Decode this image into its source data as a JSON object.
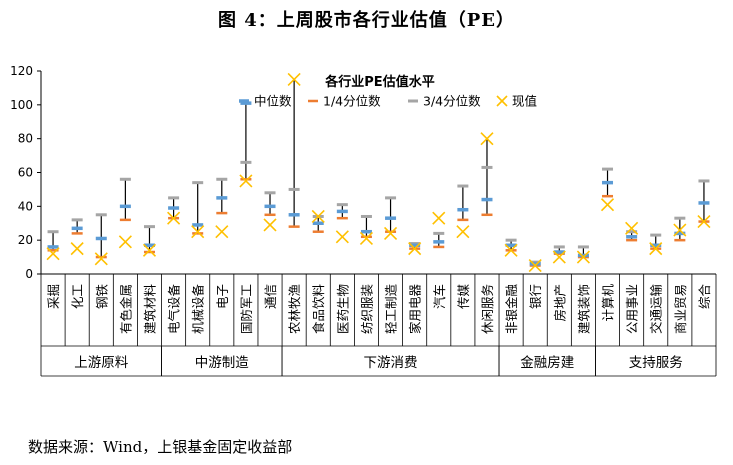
{
  "figure_title": "图 4：上周股市各行业估值（PE）",
  "source_note": "数据来源：Wind，上银基金固定收益部",
  "chart_data": {
    "type": "box",
    "title": "各行业PE估值水平",
    "xlabel": "",
    "ylabel": "",
    "ylim": [
      0,
      120
    ],
    "yticks": [
      0,
      20,
      40,
      60,
      80,
      100,
      120
    ],
    "grid": false,
    "legend_position": "top",
    "legend": {
      "median": "中位数",
      "q1": "1/4分位数",
      "q3": "3/4分位数",
      "current": "现值"
    },
    "colors": {
      "median": "#5b9bd5",
      "q1": "#ed7d31",
      "q3": "#a5a5a5",
      "current": "#ffc000",
      "whisker": "#000000"
    },
    "categories": [
      "采掘",
      "化工",
      "钢铁",
      "有色金属",
      "建筑材料",
      "电气设备",
      "机械设备",
      "电子",
      "国防军工",
      "通信",
      "农林牧渔",
      "食品饮料",
      "医药生物",
      "纺织服装",
      "轻工制造",
      "家用电器",
      "汽车",
      "传媒",
      "休闲服务",
      "非银金融",
      "银行",
      "房地产",
      "建筑装饰",
      "计算机",
      "公用事业",
      "交通运输",
      "商业贸易",
      "综合"
    ],
    "median": [
      16,
      27,
      21,
      40,
      17,
      39,
      29,
      45,
      101,
      40,
      35,
      30,
      37,
      25,
      33,
      17,
      19,
      38,
      44,
      17,
      6,
      13,
      11,
      54,
      22,
      17,
      24,
      42
    ],
    "q1": [
      14,
      24,
      10,
      32,
      13,
      33,
      24,
      36,
      56,
      35,
      28,
      25,
      33,
      22,
      25,
      15,
      16,
      32,
      35,
      14,
      5,
      12,
      10,
      46,
      20,
      15,
      20,
      31
    ],
    "q3": [
      25,
      32,
      35,
      56,
      28,
      45,
      54,
      56,
      66,
      48,
      50,
      34,
      41,
      34,
      45,
      18,
      24,
      52,
      63,
      20,
      7,
      16,
      16,
      62,
      25,
      23,
      33,
      55
    ],
    "max": [
      25,
      32,
      35,
      56,
      28,
      45,
      54,
      56,
      102,
      48,
      115,
      34,
      41,
      34,
      45,
      18,
      24,
      52,
      80,
      20,
      7,
      16,
      16,
      62,
      25,
      23,
      33,
      55
    ],
    "current": [
      12,
      15,
      9,
      19,
      14,
      33,
      25,
      25,
      55,
      29,
      115,
      34,
      22,
      21,
      24,
      15,
      33,
      25,
      80,
      14,
      5,
      10,
      10,
      41,
      27,
      15,
      26,
      31
    ],
    "groups": [
      {
        "label": "上游原料",
        "start": 0,
        "end": 4
      },
      {
        "label": "中游制造",
        "start": 5,
        "end": 9
      },
      {
        "label": "下游消费",
        "start": 10,
        "end": 18
      },
      {
        "label": "金融房建",
        "start": 19,
        "end": 22
      },
      {
        "label": "支持服务",
        "start": 23,
        "end": 27
      }
    ]
  }
}
